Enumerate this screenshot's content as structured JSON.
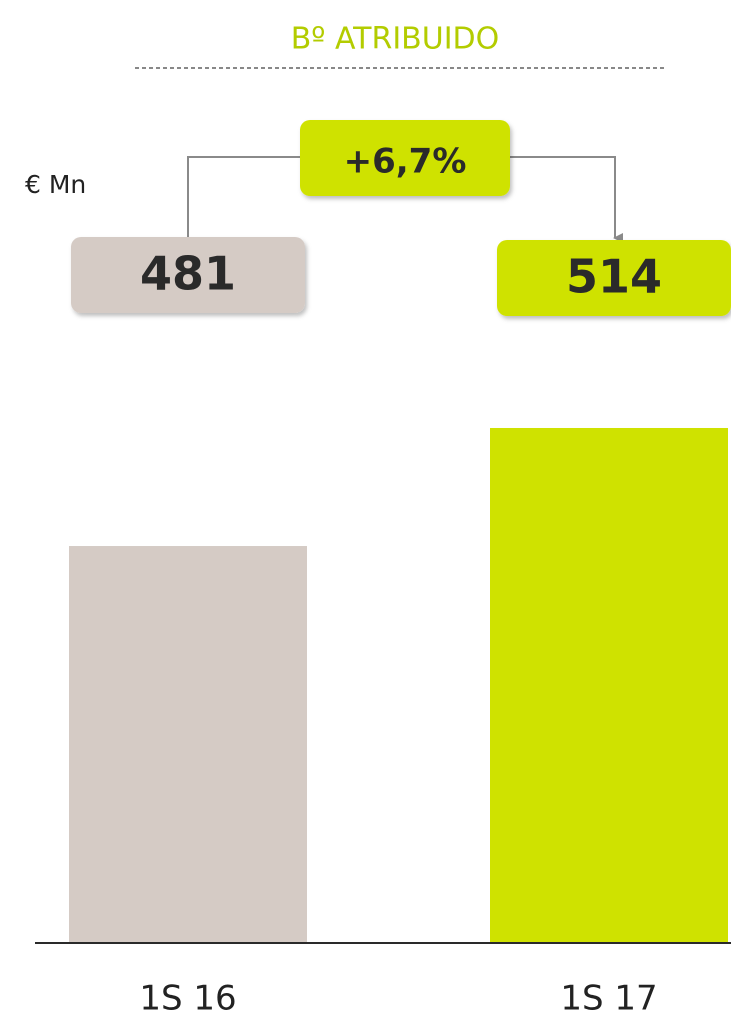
{
  "chart_data": {
    "type": "bar",
    "title": "Bº ATRIBUIDO",
    "unit_label": "€ Mn",
    "categories": [
      "1S 16",
      "1S 17"
    ],
    "values": [
      481,
      514
    ],
    "colors": [
      "#d5cbc5",
      "#cfe200"
    ],
    "annotation": "+6,7%",
    "ylim": [
      370,
      540
    ]
  }
}
